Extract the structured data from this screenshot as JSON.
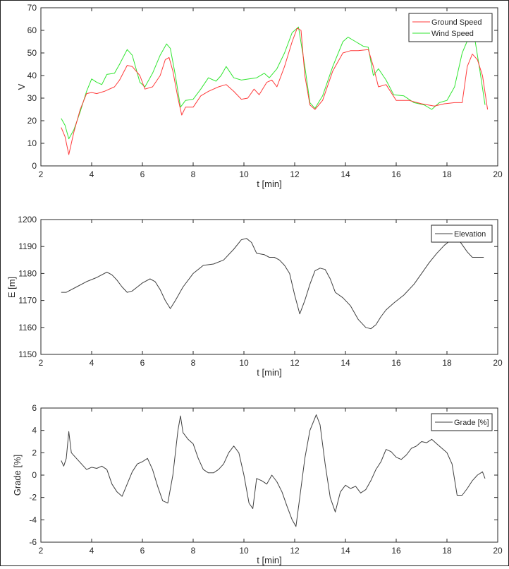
{
  "chart_data": [
    {
      "type": "line",
      "xlabel": "t [min]",
      "ylabel": "V",
      "xlim": [
        2,
        20
      ],
      "ylim": [
        0,
        70
      ],
      "xticks": [
        2,
        4,
        6,
        8,
        10,
        12,
        14,
        16,
        18,
        20
      ],
      "yticks": [
        0,
        10,
        20,
        30,
        40,
        50,
        60,
        70
      ],
      "grid": false,
      "legend_position": "top-right",
      "series": [
        {
          "name": "Ground Speed",
          "color": "#ff3b3b",
          "x": [
            2.8,
            2.95,
            3.1,
            3.3,
            3.55,
            3.8,
            4.0,
            4.2,
            4.5,
            4.9,
            5.1,
            5.4,
            5.6,
            5.9,
            6.1,
            6.4,
            6.7,
            6.9,
            7.05,
            7.2,
            7.4,
            7.55,
            7.7,
            8.0,
            8.3,
            8.6,
            9.0,
            9.3,
            9.6,
            9.9,
            10.15,
            10.4,
            10.6,
            10.9,
            11.1,
            11.3,
            11.6,
            11.9,
            12.1,
            12.25,
            12.4,
            12.6,
            12.8,
            13.1,
            13.5,
            13.9,
            14.2,
            14.5,
            14.9,
            15.1,
            15.3,
            15.6,
            16.0,
            16.5,
            17.0,
            17.5,
            17.9,
            18.3,
            18.6,
            18.8,
            19.0,
            19.2,
            19.4,
            19.6
          ],
          "y": [
            17,
            13,
            5,
            15,
            25,
            32,
            32.5,
            32,
            33,
            35,
            38,
            44.5,
            44,
            40,
            34,
            35,
            40,
            47,
            48,
            42,
            30,
            22.5,
            26,
            26,
            31,
            33,
            35,
            36,
            33,
            29.5,
            30,
            34,
            31.5,
            37,
            38,
            35,
            44,
            55,
            61,
            60,
            40,
            27,
            25,
            29,
            42,
            50,
            51,
            51,
            51.5,
            44,
            35,
            36,
            29,
            29,
            27.5,
            26.5,
            27.5,
            28,
            28,
            44,
            49.5,
            47,
            40,
            25
          ]
        },
        {
          "name": "Wind Speed",
          "color": "#32e632",
          "x": [
            2.8,
            2.95,
            3.1,
            3.3,
            3.55,
            3.8,
            4.0,
            4.2,
            4.4,
            4.6,
            4.9,
            5.1,
            5.4,
            5.6,
            5.9,
            6.1,
            6.4,
            6.7,
            6.95,
            7.1,
            7.3,
            7.5,
            7.7,
            8.0,
            8.3,
            8.6,
            8.9,
            9.1,
            9.3,
            9.6,
            9.9,
            10.2,
            10.5,
            10.8,
            11.0,
            11.3,
            11.6,
            11.9,
            12.15,
            12.4,
            12.6,
            12.8,
            13.1,
            13.5,
            13.9,
            14.1,
            14.4,
            14.7,
            14.9,
            15.1,
            15.3,
            15.6,
            15.9,
            16.3,
            16.7,
            17.1,
            17.4,
            17.7,
            18.0,
            18.3,
            18.6,
            18.9,
            19.1,
            19.3,
            19.5
          ],
          "y": [
            21,
            18,
            12,
            16,
            24,
            33,
            38.5,
            37,
            36,
            40.5,
            41,
            45,
            51.5,
            49,
            37,
            35,
            41,
            49,
            54,
            52,
            40,
            26,
            29,
            29.5,
            34,
            39,
            37.5,
            40,
            44,
            39,
            38,
            38.5,
            39,
            41,
            39,
            43,
            50,
            59,
            61.5,
            44,
            28,
            25.5,
            31,
            44,
            55,
            57,
            55,
            53,
            52.5,
            40,
            43,
            38,
            31.5,
            31,
            28,
            27,
            25,
            28,
            29,
            35,
            50,
            58,
            56,
            42,
            27
          ]
        }
      ]
    },
    {
      "type": "line",
      "xlabel": "t [min]",
      "ylabel": "E [m]",
      "xlim": [
        2,
        20
      ],
      "ylim": [
        1150,
        1200
      ],
      "xticks": [
        2,
        4,
        6,
        8,
        10,
        12,
        14,
        16,
        18,
        20
      ],
      "yticks": [
        1150,
        1160,
        1170,
        1180,
        1190,
        1200
      ],
      "grid": false,
      "legend_position": "top-right",
      "series": [
        {
          "name": "Elevation",
          "color": "#404040",
          "x": [
            2.8,
            3.0,
            3.4,
            3.8,
            4.2,
            4.6,
            4.8,
            5.0,
            5.2,
            5.4,
            5.6,
            5.8,
            6.0,
            6.3,
            6.5,
            6.7,
            6.9,
            7.1,
            7.3,
            7.6,
            8.0,
            8.4,
            8.8,
            9.2,
            9.6,
            9.9,
            10.1,
            10.3,
            10.5,
            10.8,
            11.0,
            11.2,
            11.4,
            11.6,
            11.8,
            12.0,
            12.2,
            12.4,
            12.6,
            12.8,
            13.0,
            13.2,
            13.4,
            13.6,
            13.9,
            14.2,
            14.5,
            14.8,
            15.0,
            15.2,
            15.4,
            15.6,
            15.9,
            16.3,
            16.7,
            17.0,
            17.3,
            17.6,
            17.9,
            18.1,
            18.3,
            18.5,
            18.8,
            19.0,
            19.2,
            19.45
          ],
          "y": [
            1173,
            1173,
            1175,
            1177,
            1178.5,
            1180.5,
            1179.5,
            1177.5,
            1175,
            1173,
            1173.5,
            1175,
            1176.5,
            1178,
            1177,
            1174,
            1170,
            1167,
            1170,
            1175,
            1180,
            1183,
            1183.5,
            1185,
            1189,
            1192.5,
            1193,
            1191.5,
            1187.5,
            1187,
            1186,
            1186,
            1185,
            1183,
            1180,
            1172,
            1165,
            1170,
            1176,
            1181,
            1182,
            1181.5,
            1178,
            1173,
            1171,
            1168,
            1163,
            1160,
            1159.5,
            1161,
            1164,
            1166.5,
            1169,
            1172,
            1176,
            1180,
            1184,
            1187.5,
            1190.5,
            1192,
            1193,
            1192,
            1188,
            1186,
            1186,
            1186
          ]
        }
      ]
    },
    {
      "type": "line",
      "xlabel": "t [min]",
      "ylabel": "Grade [%]",
      "xlim": [
        2,
        20
      ],
      "ylim": [
        -6,
        6
      ],
      "xticks": [
        2,
        4,
        6,
        8,
        10,
        12,
        14,
        16,
        18,
        20
      ],
      "yticks": [
        -6,
        -4,
        -2,
        0,
        2,
        4,
        6
      ],
      "grid": false,
      "legend_position": "top-right",
      "series": [
        {
          "name": "Grade [%]",
          "color": "#404040",
          "x": [
            2.8,
            2.9,
            3.0,
            3.1,
            3.2,
            3.4,
            3.6,
            3.8,
            4.0,
            4.2,
            4.4,
            4.6,
            4.8,
            5.0,
            5.2,
            5.4,
            5.6,
            5.8,
            6.0,
            6.2,
            6.4,
            6.6,
            6.8,
            7.0,
            7.2,
            7.4,
            7.5,
            7.6,
            7.8,
            8.0,
            8.2,
            8.4,
            8.6,
            8.8,
            9.0,
            9.2,
            9.4,
            9.6,
            9.8,
            10.0,
            10.2,
            10.35,
            10.5,
            10.7,
            10.9,
            11.1,
            11.3,
            11.5,
            11.7,
            11.9,
            12.05,
            12.2,
            12.4,
            12.6,
            12.85,
            13.0,
            13.2,
            13.4,
            13.6,
            13.8,
            14.0,
            14.2,
            14.4,
            14.6,
            14.8,
            15.0,
            15.2,
            15.4,
            15.6,
            15.8,
            16.0,
            16.2,
            16.4,
            16.6,
            16.8,
            17.0,
            17.2,
            17.4,
            17.6,
            17.8,
            18.0,
            18.2,
            18.4,
            18.6,
            18.8,
            19.0,
            19.2,
            19.4,
            19.5
          ],
          "y": [
            1.3,
            0.8,
            1.5,
            3.9,
            2.0,
            1.5,
            1.0,
            0.5,
            0.7,
            0.6,
            0.8,
            0.5,
            -0.8,
            -1.5,
            -1.9,
            -0.8,
            0.3,
            1.0,
            1.2,
            1.5,
            0.5,
            -1.0,
            -2.3,
            -2.5,
            0.0,
            4.0,
            5.3,
            3.8,
            3.2,
            2.8,
            1.5,
            0.5,
            0.2,
            0.2,
            0.5,
            1.0,
            2.0,
            2.6,
            2.0,
            0.0,
            -2.5,
            -3.0,
            -0.3,
            -0.5,
            -0.8,
            0.0,
            -0.6,
            -1.5,
            -2.8,
            -4.0,
            -4.6,
            -2.0,
            1.5,
            4.0,
            5.4,
            4.5,
            1.0,
            -2.0,
            -3.3,
            -1.5,
            -0.9,
            -1.2,
            -1.0,
            -1.6,
            -1.3,
            -0.5,
            0.5,
            1.2,
            2.3,
            2.1,
            1.6,
            1.4,
            1.8,
            2.4,
            2.6,
            3.0,
            2.9,
            3.2,
            2.8,
            2.4,
            2.0,
            1.0,
            -1.8,
            -1.8,
            -1.2,
            -0.5,
            0.0,
            0.3,
            -0.3
          ]
        }
      ]
    }
  ]
}
